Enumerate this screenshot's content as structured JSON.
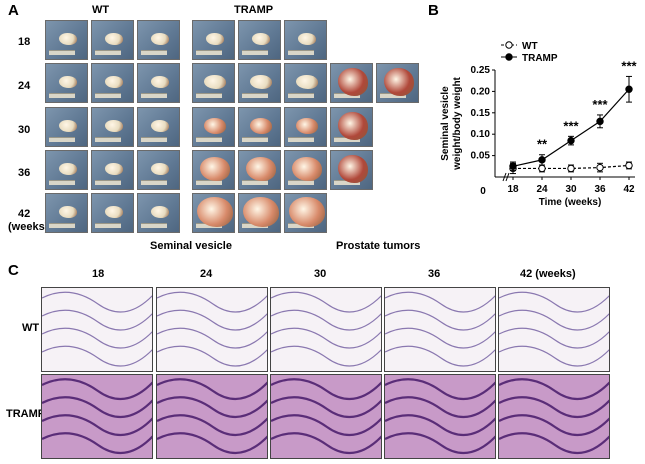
{
  "panel_a": {
    "letter": "A",
    "group_wt": "WT",
    "group_tramp": "TRAMP",
    "ages": [
      "18",
      "24",
      "30",
      "36",
      "42"
    ],
    "age_unit": "(weeks)",
    "caption_sv": "Seminal vesicle",
    "caption_pt": "Prostate tumors"
  },
  "panel_b": {
    "letter": "B"
  },
  "panel_c": {
    "letter": "C",
    "timepoints": [
      "18",
      "24",
      "30",
      "36",
      "42 (weeks)"
    ],
    "row_wt": "WT",
    "row_tramp": "TRAMP"
  },
  "chart_data": {
    "type": "line",
    "x": [
      18,
      24,
      30,
      36,
      42
    ],
    "ylabel": "Seminal vesicle weight/body weight",
    "xlabel": "Time (weeks)",
    "ylim": [
      0,
      0.25
    ],
    "yticks": [
      "0.05",
      "0.10",
      "0.15",
      "0.20",
      "0.25"
    ],
    "zero_label": "0",
    "series": [
      {
        "name": "WT",
        "values": [
          0.02,
          0.02,
          0.02,
          0.022,
          0.027
        ],
        "errors": [
          0.012,
          0.008,
          0.008,
          0.01,
          0.008
        ],
        "marker": "open-circle",
        "dash": true
      },
      {
        "name": "TRAMP",
        "values": [
          0.025,
          0.04,
          0.085,
          0.13,
          0.205
        ],
        "errors": [
          0.01,
          0.012,
          0.01,
          0.015,
          0.03
        ],
        "marker": "filled-circle",
        "dash": false
      }
    ],
    "significance": [
      "",
      "**",
      "***",
      "***",
      "***"
    ],
    "legend": "top-left",
    "axis_break": true
  },
  "colors": {
    "tissue_light": "#e8dcc0",
    "tissue_red": "#b0483a",
    "he_pink": "#c89ac8"
  }
}
